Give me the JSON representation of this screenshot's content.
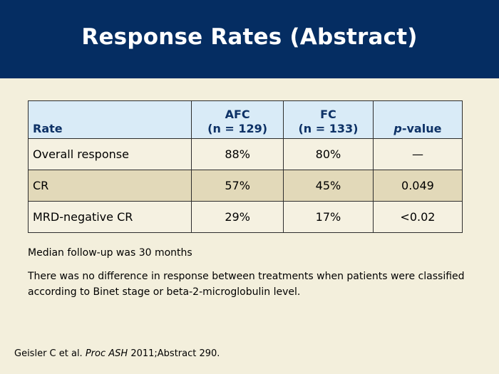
{
  "slide": {
    "title": "Response Rates (Abstract)"
  },
  "table": {
    "headers": {
      "rate": "Rate",
      "afc_line1": "AFC",
      "afc_line2": "(n = 129)",
      "fc_line1": "FC",
      "fc_line2": "(n = 133)",
      "pvalue_italic": "p",
      "pvalue_rest": "-value"
    },
    "rows": [
      {
        "rate": "Overall response",
        "afc": "88%",
        "fc": "80%",
        "p": "—"
      },
      {
        "rate": "CR",
        "afc": "57%",
        "fc": "45%",
        "p": "0.049"
      },
      {
        "rate": "MRD-negative CR",
        "afc": "29%",
        "fc": "17%",
        "p": "<0.02"
      }
    ]
  },
  "notes": {
    "followup": "Median follow-up was 30 months",
    "difference": "There was no difference in response between treatments when patients were classified according to Binet stage or beta-2-microglobulin level."
  },
  "citation": {
    "authors": "Geisler C et al.",
    "journal": "Proc ASH",
    "rest": "2011;Abstract 290."
  },
  "colors": {
    "header_bg": "#052d62",
    "page_bg": "#f3efdc",
    "table_header_bg": "#d9ebf7",
    "row_alt_bg": "#e2d9b9"
  }
}
